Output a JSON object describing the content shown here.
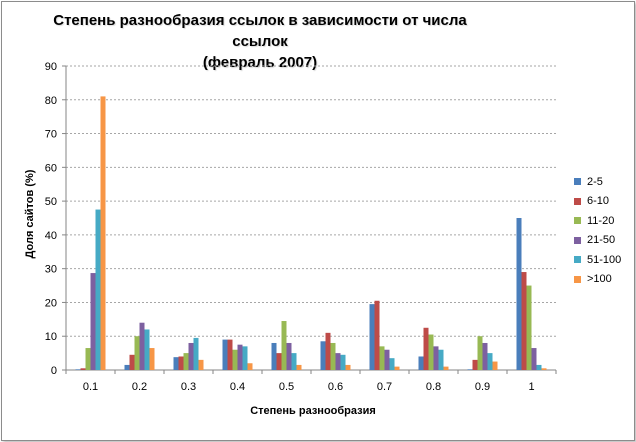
{
  "chart_data": {
    "type": "bar",
    "title_line1": "Степень разнообразия  ссылок в зависимости от числа ссылок",
    "title_line2": "(февраль 2007)",
    "xlabel": "Степень разнообразия",
    "ylabel": "Доля сайтов (%)",
    "ylim": [
      0,
      90
    ],
    "yticks": [
      "0",
      "10",
      "20",
      "30",
      "40",
      "50",
      "60",
      "70",
      "80",
      "90"
    ],
    "categories": [
      "0.1",
      "0.2",
      "0.3",
      "0.4",
      "0.5",
      "0.6",
      "0.7",
      "0.8",
      "0.9",
      "1"
    ],
    "grid": true,
    "legend": "right",
    "series": [
      {
        "name": "2-5",
        "color": "#4a7ebb",
        "values": [
          0.2,
          1.5,
          3.8,
          9,
          8,
          8.5,
          19.5,
          4,
          0.2,
          45
        ]
      },
      {
        "name": "6-10",
        "color": "#be4b48",
        "values": [
          0.5,
          4.5,
          4,
          9,
          5,
          11,
          20.5,
          12.5,
          3,
          29
        ]
      },
      {
        "name": "11-20",
        "color": "#98b954",
        "values": [
          6.5,
          10,
          5,
          6,
          14.5,
          8,
          7,
          10.5,
          10,
          25
        ]
      },
      {
        "name": "21-50",
        "color": "#7d60a0",
        "values": [
          28.7,
          14,
          8,
          7.5,
          8,
          5,
          6,
          7,
          8,
          6.5
        ]
      },
      {
        "name": "51-100",
        "color": "#46aac5",
        "values": [
          47.5,
          12,
          9.5,
          7,
          5,
          4.5,
          3.5,
          6,
          5,
          1.5
        ]
      },
      {
        "name": ">100",
        "color": "#f79646",
        "values": [
          81,
          6.5,
          3,
          2,
          1.5,
          1.5,
          1,
          1,
          2.5,
          0.5
        ]
      }
    ]
  }
}
